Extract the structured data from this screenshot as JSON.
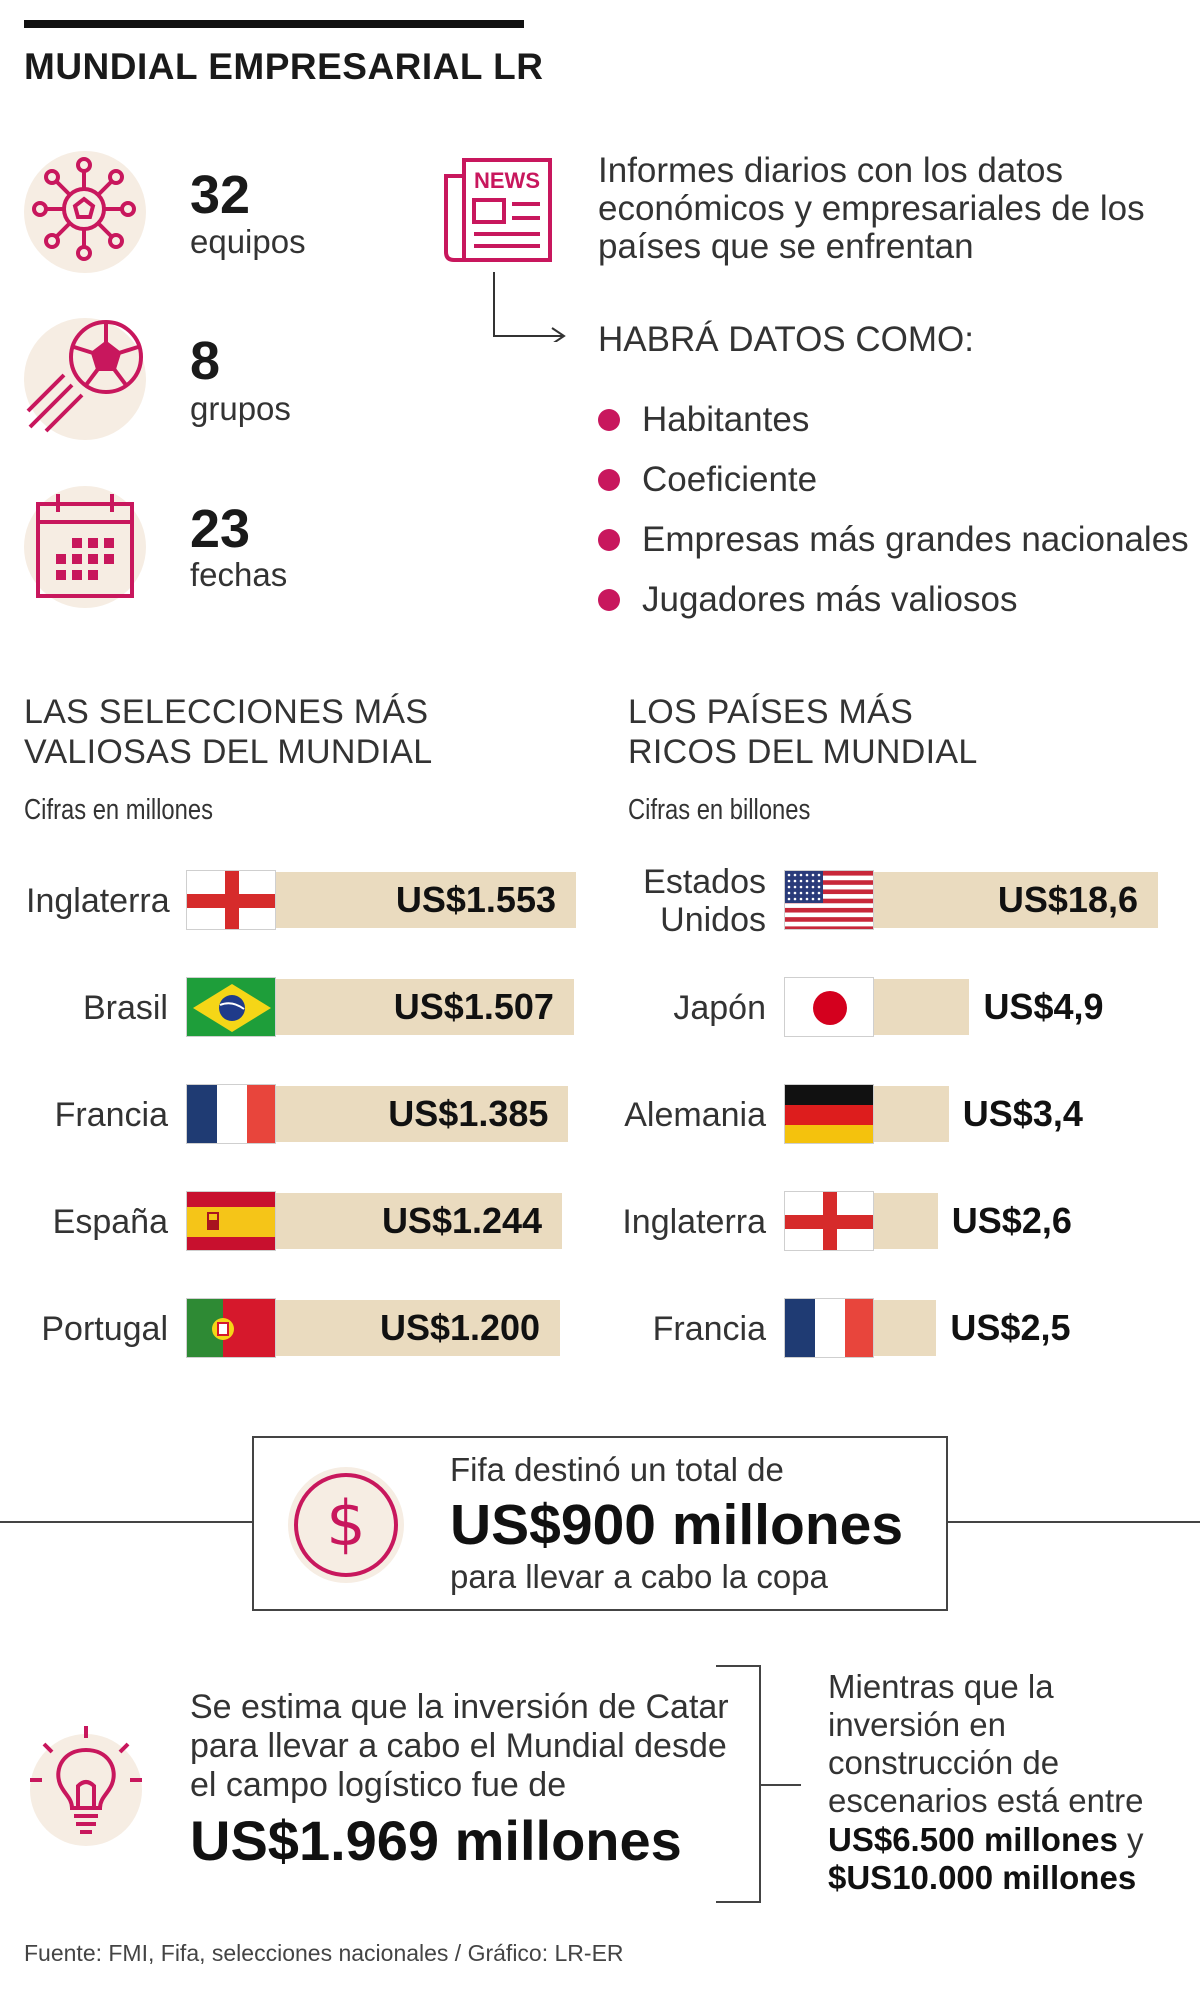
{
  "header": {
    "title": "MUNDIAL EMPRESARIAL LR"
  },
  "stats": [
    {
      "number": "32",
      "label": "equipos",
      "icon": "virus-ball-icon"
    },
    {
      "number": "8",
      "label": "grupos",
      "icon": "soccer-ball-icon"
    },
    {
      "number": "23",
      "label": "fechas",
      "icon": "calendar-icon"
    }
  ],
  "news": {
    "icon_label": "NEWS",
    "description": "Informes diarios con los datos económicos y empresariales de los países que se enfrentan",
    "list_title": "HABRÁ DATOS COMO:",
    "items": [
      "Habitantes",
      "Coeficiente",
      "Empresas más grandes nacionales",
      "Jugadores más valiosos"
    ]
  },
  "colors": {
    "accent": "#c8175d",
    "bar": "#eadbbf",
    "circle_bg": "#f6ede3"
  },
  "chart_data": [
    {
      "type": "bar",
      "title": "LAS SELECCIONES MÁS VALIOSAS DEL MUNDIAL",
      "subtitle": "Cifras en millones",
      "categories": [
        "Inglaterra",
        "Brasil",
        "Francia",
        "España",
        "Portugal"
      ],
      "values": [
        1553,
        1507,
        1385,
        1244,
        1200
      ],
      "value_labels": [
        "US$1.553",
        "US$1.507",
        "US$1.385",
        "US$1.244",
        "US$1.200"
      ],
      "flags": [
        "england",
        "brazil",
        "france",
        "spain",
        "portugal"
      ]
    },
    {
      "type": "bar",
      "title": "LOS PAÍSES MÁS RICOS DEL MUNDIAL",
      "subtitle": "Cifras en billones",
      "categories": [
        "Estados Unidos",
        "Japón",
        "Alemania",
        "Inglaterra",
        "Francia"
      ],
      "values": [
        18.6,
        4.9,
        3.4,
        2.6,
        2.5
      ],
      "value_labels": [
        "US$18,6",
        "US$4,9",
        "US$3,4",
        "US$2,6",
        "US$2,5"
      ],
      "flags": [
        "usa",
        "japan",
        "germany",
        "england",
        "france"
      ]
    }
  ],
  "fifa": {
    "line1": "Fifa destinó un total de",
    "amount": "US$900 millones",
    "line2": "para llevar a cabo la copa",
    "icon": "dollar-icon"
  },
  "catar": {
    "text": "Se estima que la inversión de Catar para llevar a cabo el Mundial desde el campo logístico fue de",
    "amount": "US$1.969 millones",
    "icon": "lightbulb-icon"
  },
  "construction": {
    "text": "Mientras que la inversión en construcción de escenarios está entre",
    "amount1": "US$6.500 millones",
    "connector": "y",
    "amount2": "$US10.000 millones"
  },
  "source": "Fuente: FMI, Fifa, selecciones nacionales / Gráfico: LR-ER"
}
